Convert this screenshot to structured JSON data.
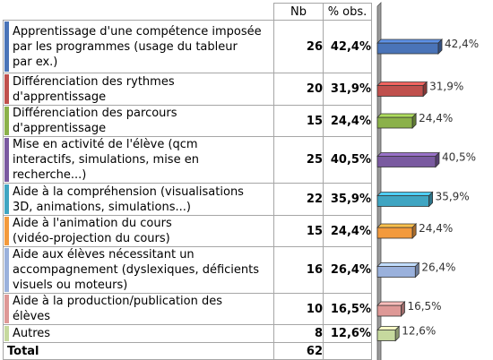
{
  "table": {
    "header_nb": "Nb",
    "header_pct": "% obs.",
    "rows": [
      {
        "lines": [
          "Apprentissage d'une compétence imposée",
          "par les programmes (usage du tableur",
          "par ex.)"
        ],
        "nb": "26",
        "pct": "42,4%",
        "color": "#4a74b8"
      },
      {
        "lines": [
          "Différenciation des rythmes",
          "d'apprentissage"
        ],
        "nb": "20",
        "pct": "31,9%",
        "color": "#c0504d"
      },
      {
        "lines": [
          "Différenciation des parcours",
          "d'apprentissage"
        ],
        "nb": "15",
        "pct": "24,4%",
        "color": "#8bb14a"
      },
      {
        "lines": [
          "Mise en activité de l'élève (qcm",
          "interactifs, simulations, mise en",
          "recherche...)"
        ],
        "nb": "25",
        "pct": "40,5%",
        "color": "#7a5aa0"
      },
      {
        "lines": [
          "Aide à la compréhension (visualisations",
          "3D, animations, simulations...)"
        ],
        "nb": "22",
        "pct": "35,9%",
        "color": "#3fa5c2"
      },
      {
        "lines": [
          "Aide à l'animation du cours",
          "(vidéo-projection du cours)"
        ],
        "nb": "15",
        "pct": "24,4%",
        "color": "#f39a3d"
      },
      {
        "lines": [
          "Aide aux élèves nécessitant un",
          "accompagnement (dyslexiques, déficients",
          "visuels ou moteurs)"
        ],
        "nb": "16",
        "pct": "26,4%",
        "color": "#9ab1dc"
      },
      {
        "lines": [
          "Aide à la production/publication des",
          "élèves"
        ],
        "nb": "10",
        "pct": "16,5%",
        "color": "#de9896"
      },
      {
        "lines": [
          "Autres"
        ],
        "nb": "8",
        "pct": "12,6%",
        "color": "#c6d99e"
      }
    ],
    "total_label": "Total",
    "total_nb": "62"
  },
  "chart_data": {
    "type": "bar",
    "orientation": "horizontal",
    "categories": [
      "Apprentissage d'une compétence imposée par les programmes (usage du tableur par ex.)",
      "Différenciation des rythmes d'apprentissage",
      "Différenciation des parcours d'apprentissage",
      "Mise en activité de l'élève (qcm interactifs, simulations, mise en recherche...)",
      "Aide à la compréhension (visualisations 3D, animations, simulations...)",
      "Aide à l'animation du cours (vidéo-projection du cours)",
      "Aide aux élèves nécessitant un accompagnement (dyslexiques, déficients visuels ou moteurs)",
      "Aide à la production/publication des élèves",
      "Autres"
    ],
    "values": [
      42.4,
      31.9,
      24.4,
      40.5,
      35.9,
      24.4,
      26.4,
      16.5,
      12.6
    ],
    "counts": [
      26,
      20,
      15,
      25,
      22,
      15,
      16,
      10,
      8
    ],
    "value_labels": [
      "42,4%",
      "31,9%",
      "24,4%",
      "40,5%",
      "35,9%",
      "24,4%",
      "26,4%",
      "16,5%",
      "12,6%"
    ],
    "colors": [
      "#4a74b8",
      "#c0504d",
      "#8bb14a",
      "#7a5aa0",
      "#3fa5c2",
      "#f39a3d",
      "#9ab1dc",
      "#de9896",
      "#c6d99e"
    ],
    "title": "",
    "xlabel": "",
    "ylabel": "",
    "xlim": [
      0,
      42.4
    ],
    "grid": false,
    "style": "3d"
  }
}
